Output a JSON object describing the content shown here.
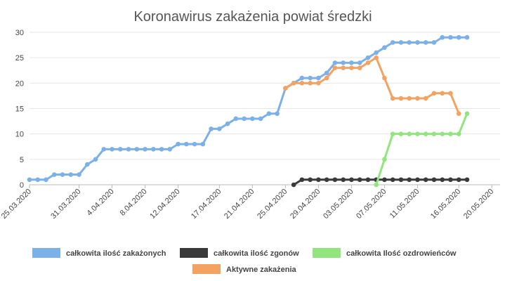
{
  "chart_data": {
    "type": "line",
    "title": "Koronawirus zakażenia powiat średzki",
    "xlabel": "",
    "ylabel": "",
    "ylim": [
      0,
      30
    ],
    "yticks": [
      0,
      5,
      10,
      15,
      20,
      25,
      30
    ],
    "start_date": "25.03.2020",
    "num_days": 58,
    "x_tick_labels": [
      {
        "day": 0,
        "label": "25.03.2020"
      },
      {
        "day": 6,
        "label": "31.03.2020"
      },
      {
        "day": 10,
        "label": "4.04.2020"
      },
      {
        "day": 14,
        "label": "8.04.2020"
      },
      {
        "day": 18,
        "label": "12.04.2020"
      },
      {
        "day": 23,
        "label": "17.04.2020"
      },
      {
        "day": 27,
        "label": "21.04.2020"
      },
      {
        "day": 31,
        "label": "25.04.2020"
      },
      {
        "day": 35,
        "label": "29.04.2020"
      },
      {
        "day": 39,
        "label": "03.05.2020"
      },
      {
        "day": 43,
        "label": "07.05.2020"
      },
      {
        "day": 47,
        "label": "11.05.2020"
      },
      {
        "day": 52,
        "label": "16.05.2020"
      },
      {
        "day": 56,
        "label": "20.05.2020"
      }
    ],
    "series": [
      {
        "name": "całkowita ilość zakażonych",
        "color": "#7cb0e8",
        "start_day": 0,
        "values": [
          1,
          1,
          1,
          2,
          2,
          2,
          2,
          4,
          5,
          7,
          7,
          7,
          7,
          7,
          7,
          7,
          7,
          7,
          8,
          8,
          8,
          8,
          11,
          11,
          12,
          13,
          13,
          13,
          13,
          14,
          14,
          19,
          20,
          21,
          21,
          21,
          22,
          24,
          24,
          24,
          24,
          25,
          26,
          27,
          28,
          28,
          28,
          28,
          28,
          28,
          29,
          29,
          29,
          29
        ]
      },
      {
        "name": "całkowita ilość zgonów",
        "color": "#3a3a3a",
        "start_day": 32,
        "values": [
          0,
          1,
          1,
          1,
          1,
          1,
          1,
          1,
          1,
          1,
          1,
          1,
          1,
          1,
          1,
          1,
          1,
          1,
          1,
          1,
          1,
          1
        ]
      },
      {
        "name": "całkowita Ilość ozdrowieńców",
        "color": "#90e67c",
        "start_day": 42,
        "values": [
          0,
          5,
          10,
          10,
          10,
          10,
          10,
          10,
          10,
          10,
          10,
          14
        ]
      },
      {
        "name": "Aktywne zakażenia",
        "color": "#f4a261",
        "start_day": 31,
        "values": [
          19,
          20,
          20,
          20,
          20,
          21,
          23,
          23,
          23,
          23,
          24,
          25,
          21,
          17,
          17,
          17,
          17,
          17,
          18,
          18,
          18,
          14
        ]
      }
    ],
    "legend_position": "bottom"
  }
}
